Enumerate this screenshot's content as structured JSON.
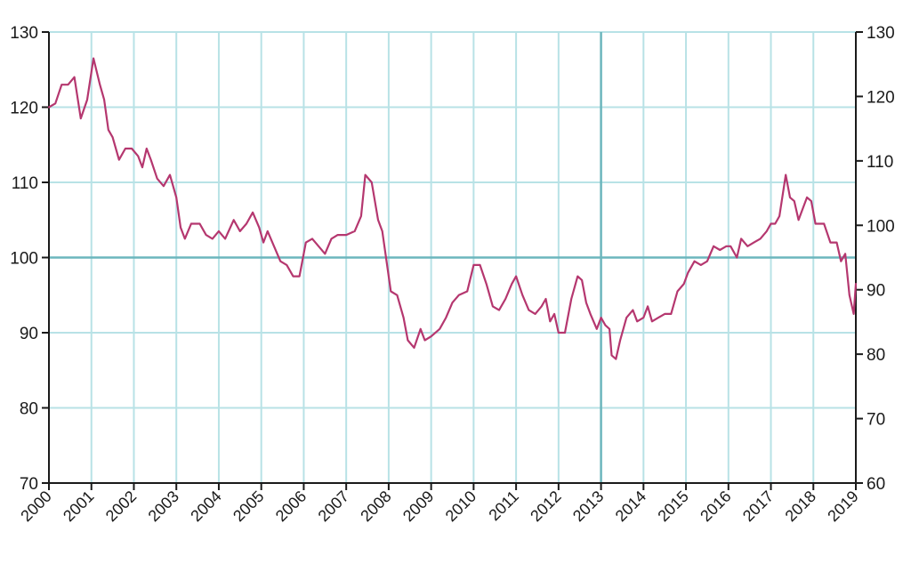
{
  "chart_data": {
    "type": "line",
    "title": "",
    "xlabel": "",
    "ylabel": "",
    "grid": true,
    "colors": {
      "line": "#b5376f",
      "grid": "#b8e2e6",
      "reference": "#6cb6bd",
      "axis": "#1a1a1a"
    },
    "x_ticks": [
      "2000",
      "2001",
      "2002",
      "2003",
      "2004",
      "2005",
      "2006",
      "2007",
      "2008",
      "2009",
      "2010",
      "2011",
      "2012",
      "2013",
      "2014",
      "2015",
      "2016",
      "2017",
      "2018",
      "2019"
    ],
    "xlim": [
      2000,
      2019
    ],
    "ylim_left": [
      70,
      130
    ],
    "y_ticks_left": [
      "70",
      "80",
      "90",
      "100",
      "110",
      "120",
      "130"
    ],
    "ylim_right": [
      60,
      130
    ],
    "y_ticks_right": [
      "60",
      "70",
      "80",
      "90",
      "100",
      "110",
      "120",
      "130"
    ],
    "reference_line_y": 100,
    "reference_line_x": 2013,
    "series": [
      {
        "axis": "left",
        "points": [
          [
            2000.0,
            120.0
          ],
          [
            2000.15,
            120.5
          ],
          [
            2000.3,
            123.0
          ],
          [
            2000.45,
            123.0
          ],
          [
            2000.6,
            124.0
          ],
          [
            2000.75,
            118.5
          ],
          [
            2000.9,
            121.0
          ],
          [
            2001.05,
            126.5
          ],
          [
            2001.2,
            123.0
          ],
          [
            2001.3,
            121.0
          ],
          [
            2001.4,
            117.0
          ],
          [
            2001.5,
            116.0
          ],
          [
            2001.65,
            113.0
          ],
          [
            2001.8,
            114.5
          ],
          [
            2001.95,
            114.5
          ],
          [
            2002.1,
            113.5
          ],
          [
            2002.2,
            112.0
          ],
          [
            2002.3,
            114.5
          ],
          [
            2002.4,
            113.0
          ],
          [
            2002.55,
            110.5
          ],
          [
            2002.7,
            109.5
          ],
          [
            2002.85,
            111.0
          ],
          [
            2003.0,
            108.0
          ],
          [
            2003.1,
            104.0
          ],
          [
            2003.2,
            102.5
          ],
          [
            2003.35,
            104.5
          ],
          [
            2003.55,
            104.5
          ],
          [
            2003.7,
            103.0
          ],
          [
            2003.85,
            102.5
          ],
          [
            2004.0,
            103.5
          ],
          [
            2004.15,
            102.5
          ],
          [
            2004.35,
            105.0
          ],
          [
            2004.5,
            103.5
          ],
          [
            2004.65,
            104.5
          ],
          [
            2004.8,
            106.0
          ],
          [
            2004.95,
            104.0
          ],
          [
            2005.05,
            102.0
          ],
          [
            2005.15,
            103.5
          ],
          [
            2005.3,
            101.5
          ],
          [
            2005.45,
            99.5
          ],
          [
            2005.6,
            99.0
          ],
          [
            2005.75,
            97.5
          ],
          [
            2005.9,
            97.5
          ],
          [
            2006.05,
            102.0
          ],
          [
            2006.2,
            102.5
          ],
          [
            2006.35,
            101.5
          ],
          [
            2006.5,
            100.5
          ],
          [
            2006.65,
            102.5
          ],
          [
            2006.8,
            103.0
          ],
          [
            2007.0,
            103.0
          ],
          [
            2007.2,
            103.5
          ],
          [
            2007.35,
            105.5
          ],
          [
            2007.45,
            111.0
          ],
          [
            2007.6,
            110.0
          ],
          [
            2007.75,
            105.0
          ],
          [
            2007.85,
            103.5
          ],
          [
            2007.95,
            99.5
          ],
          [
            2008.05,
            95.5
          ],
          [
            2008.2,
            95.0
          ],
          [
            2008.35,
            92.0
          ],
          [
            2008.45,
            89.0
          ],
          [
            2008.6,
            88.0
          ],
          [
            2008.75,
            90.5
          ],
          [
            2008.85,
            89.0
          ],
          [
            2009.0,
            89.5
          ],
          [
            2009.2,
            90.5
          ],
          [
            2009.35,
            92.0
          ],
          [
            2009.5,
            94.0
          ],
          [
            2009.65,
            95.0
          ],
          [
            2009.85,
            95.5
          ],
          [
            2010.0,
            99.0
          ],
          [
            2010.15,
            99.0
          ],
          [
            2010.3,
            96.5
          ],
          [
            2010.45,
            93.5
          ],
          [
            2010.6,
            93.0
          ],
          [
            2010.75,
            94.5
          ],
          [
            2010.9,
            96.5
          ],
          [
            2011.0,
            97.5
          ],
          [
            2011.15,
            95.0
          ],
          [
            2011.3,
            93.0
          ],
          [
            2011.45,
            92.5
          ],
          [
            2011.6,
            93.5
          ],
          [
            2011.7,
            94.5
          ],
          [
            2011.8,
            91.5
          ],
          [
            2011.9,
            92.5
          ],
          [
            2012.0,
            90.0
          ],
          [
            2012.15,
            90.0
          ],
          [
            2012.3,
            94.5
          ],
          [
            2012.45,
            97.5
          ],
          [
            2012.55,
            97.0
          ],
          [
            2012.65,
            94.0
          ],
          [
            2012.75,
            92.5
          ],
          [
            2012.9,
            90.5
          ],
          [
            2013.0,
            92.0
          ],
          [
            2013.1,
            91.0
          ],
          [
            2013.2,
            90.5
          ],
          [
            2013.25,
            87.0
          ],
          [
            2013.35,
            86.5
          ],
          [
            2013.45,
            89.0
          ],
          [
            2013.6,
            92.0
          ],
          [
            2013.75,
            93.0
          ],
          [
            2013.85,
            91.5
          ],
          [
            2014.0,
            92.0
          ],
          [
            2014.1,
            93.5
          ],
          [
            2014.2,
            91.5
          ],
          [
            2014.35,
            92.0
          ],
          [
            2014.5,
            92.5
          ],
          [
            2014.65,
            92.5
          ],
          [
            2014.8,
            95.5
          ],
          [
            2014.95,
            96.5
          ],
          [
            2015.05,
            98.0
          ],
          [
            2015.2,
            99.5
          ],
          [
            2015.35,
            99.0
          ],
          [
            2015.5,
            99.5
          ],
          [
            2015.65,
            101.5
          ],
          [
            2015.8,
            101.0
          ],
          [
            2015.95,
            101.5
          ],
          [
            2016.05,
            101.5
          ],
          [
            2016.2,
            100.0
          ],
          [
            2016.3,
            102.5
          ],
          [
            2016.45,
            101.5
          ],
          [
            2016.6,
            102.0
          ],
          [
            2016.75,
            102.5
          ],
          [
            2016.9,
            103.5
          ],
          [
            2017.0,
            104.5
          ],
          [
            2017.1,
            104.5
          ],
          [
            2017.2,
            105.5
          ],
          [
            2017.35,
            111.0
          ],
          [
            2017.45,
            108.0
          ],
          [
            2017.55,
            107.5
          ],
          [
            2017.65,
            105.0
          ],
          [
            2017.75,
            106.5
          ],
          [
            2017.85,
            108.0
          ],
          [
            2017.95,
            107.5
          ],
          [
            2018.05,
            104.5
          ],
          [
            2018.25,
            104.5
          ],
          [
            2018.4,
            102.0
          ],
          [
            2018.55,
            102.0
          ],
          [
            2018.65,
            99.5
          ],
          [
            2018.75,
            100.5
          ],
          [
            2018.85,
            95.0
          ],
          [
            2018.95,
            92.5
          ],
          [
            2019.0,
            96.5
          ]
        ]
      }
    ]
  }
}
